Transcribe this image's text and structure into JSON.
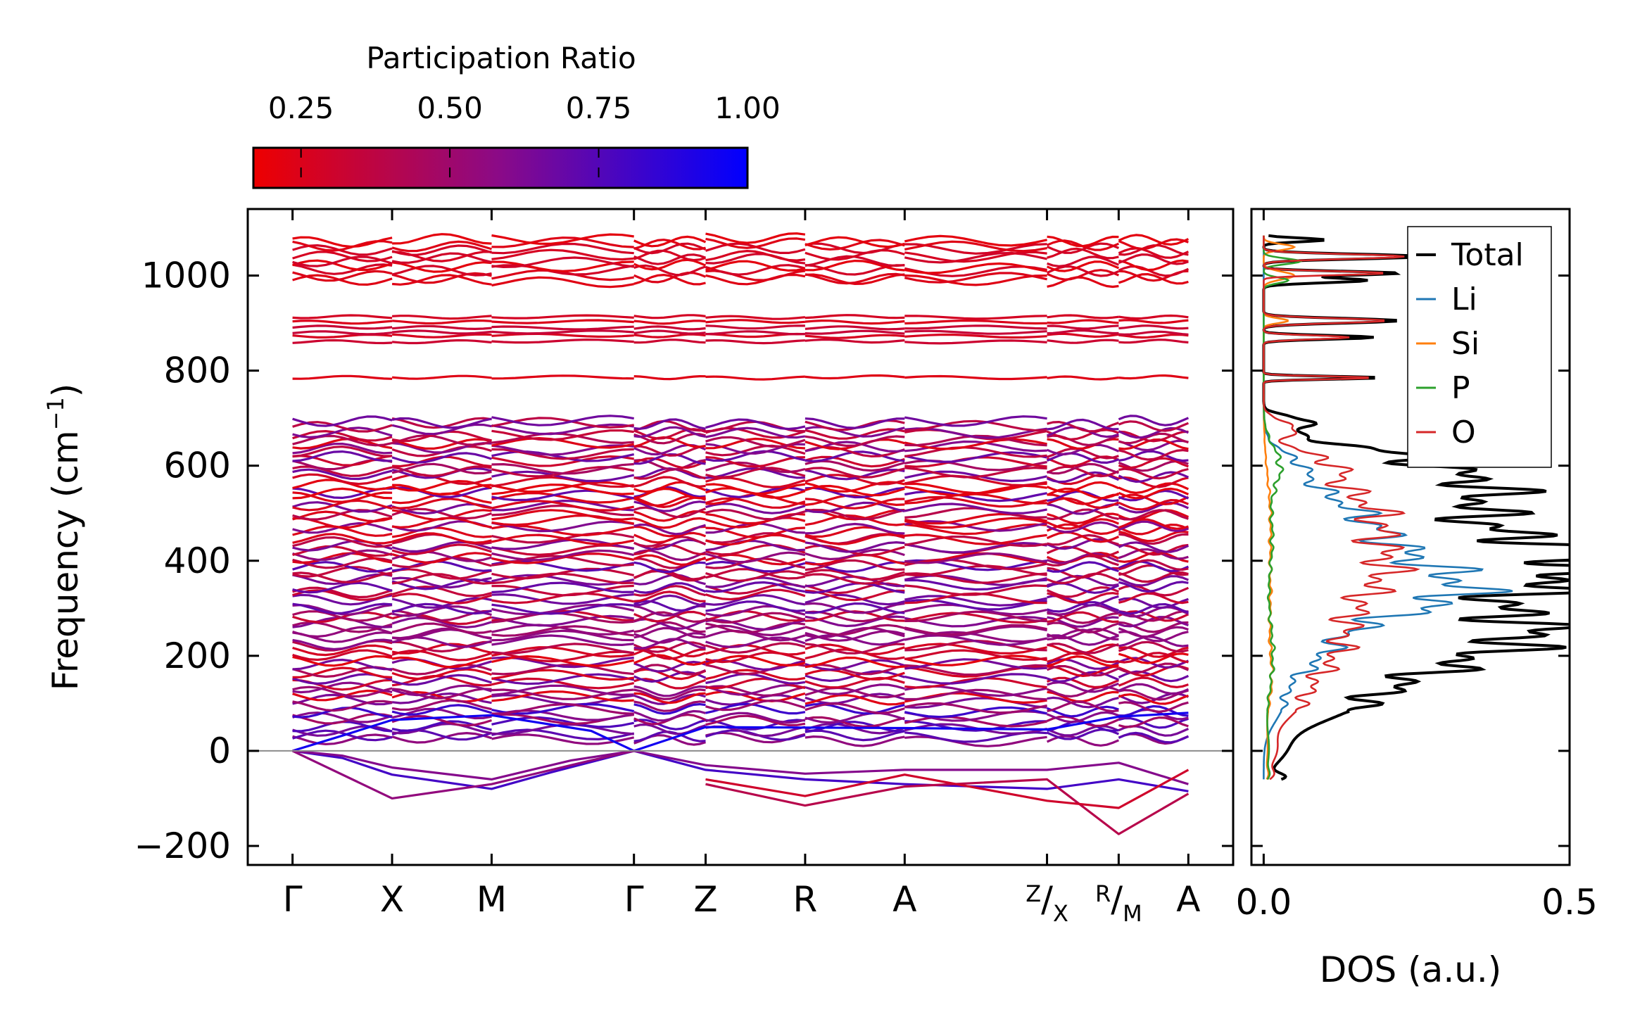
{
  "chart_data": [
    {
      "type": "line",
      "name": "phonon-band-structure",
      "ylabel": "Frequency (cm⁻¹)",
      "ylabel_text": "Frequency (cm",
      "ylabel_sup": "−1",
      "ylabel_close": ")",
      "ylim": [
        -240,
        1140
      ],
      "yticks": [
        -200,
        0,
        200,
        400,
        600,
        800,
        1000
      ],
      "ytick_labels": [
        "−200",
        "0",
        "200",
        "400",
        "600",
        "800",
        "1000"
      ],
      "kpath": [
        {
          "label": "Γ",
          "pos": 0.0
        },
        {
          "label": "X",
          "pos": 1.0
        },
        {
          "label": "M",
          "pos": 2.0
        },
        {
          "label": "Γ",
          "pos": 3.43
        },
        {
          "label": "Z",
          "pos": 4.15
        },
        {
          "label": "R",
          "pos": 5.15
        },
        {
          "label": "A",
          "pos": 6.15
        },
        {
          "label": "Z/X",
          "pos": 7.58,
          "num": "Z",
          "den": "X"
        },
        {
          "label": "R/M",
          "pos": 8.3,
          "num": "R",
          "den": "M"
        },
        {
          "label": "A",
          "pos": 9.0
        }
      ],
      "xlim": [
        -0.45,
        9.45
      ],
      "zero_line": 0,
      "colorbar": {
        "title": "Participation Ratio",
        "range": [
          0.17,
          1.0
        ],
        "ticks": [
          0.25,
          0.5,
          0.75,
          1.0
        ],
        "tick_labels": [
          "0.25",
          "0.50",
          "0.75",
          "1.00"
        ],
        "color_low": "#ee0000",
        "color_mid": "#8a0a88",
        "color_high": "#0000ff"
      },
      "band_groups": [
        {
          "range": [
            985,
            1085
          ],
          "count": 9,
          "pr": [
            0.2,
            0.3
          ]
        },
        {
          "range": [
            860,
            918
          ],
          "count": 6,
          "pr": [
            0.22,
            0.35
          ]
        },
        {
          "range": [
            780,
            790
          ],
          "count": 1,
          "pr": [
            0.2,
            0.25
          ]
        },
        {
          "range": [
            100,
            700
          ],
          "count": 62,
          "pr": [
            0.2,
            0.75
          ]
        },
        {
          "range": [
            20,
            100
          ],
          "count": 8,
          "pr": [
            0.45,
            0.85
          ]
        }
      ],
      "acoustic_branches": [
        {
          "pr": 0.95,
          "points": [
            [
              0,
              0
            ],
            [
              0.5,
              32
            ],
            [
              1.0,
              65
            ],
            [
              2.0,
              75
            ],
            [
              3.0,
              42
            ],
            [
              3.43,
              0
            ],
            [
              4.15,
              50
            ],
            [
              6.15,
              48
            ],
            [
              7.58,
              45
            ],
            [
              8.3,
              72
            ],
            [
              9.0,
              80
            ]
          ]
        },
        {
          "pr": 0.8,
          "points": [
            [
              0,
              0
            ],
            [
              0.5,
              -15
            ],
            [
              1.0,
              -50
            ],
            [
              2.0,
              -80
            ],
            [
              2.6,
              -45
            ],
            [
              3.43,
              0
            ],
            [
              4.15,
              -40
            ],
            [
              5.15,
              -60
            ],
            [
              6.15,
              -70
            ],
            [
              7.58,
              -80
            ],
            [
              8.3,
              -60
            ],
            [
              9.0,
              -85
            ]
          ]
        },
        {
          "pr": 0.6,
          "points": [
            [
              0,
              0
            ],
            [
              0.5,
              -10
            ],
            [
              1.0,
              -35
            ],
            [
              2.0,
              -60
            ],
            [
              2.8,
              -20
            ],
            [
              3.43,
              0
            ],
            [
              4.15,
              -30
            ],
            [
              5.15,
              -48
            ],
            [
              6.15,
              -40
            ],
            [
              7.58,
              -40
            ],
            [
              8.3,
              -25
            ],
            [
              9.0,
              -70
            ]
          ]
        }
      ],
      "imaginary_branches": [
        {
          "pr": 0.55,
          "points": [
            [
              0,
              0
            ],
            [
              1.0,
              -100
            ],
            [
              2.0,
              -70
            ],
            [
              3.0,
              -20
            ],
            [
              3.43,
              0
            ]
          ]
        },
        {
          "pr": 0.4,
          "points": [
            [
              4.15,
              -70
            ],
            [
              5.15,
              -115
            ],
            [
              6.15,
              -75
            ],
            [
              7.58,
              -60
            ],
            [
              8.3,
              -175
            ],
            [
              9.0,
              -90
            ]
          ]
        },
        {
          "pr": 0.3,
          "points": [
            [
              4.15,
              -60
            ],
            [
              5.15,
              -95
            ],
            [
              6.15,
              -50
            ],
            [
              7.58,
              -105
            ],
            [
              8.3,
              -120
            ],
            [
              9.0,
              -40
            ]
          ]
        }
      ]
    },
    {
      "type": "line",
      "name": "density-of-states",
      "xlabel": "DOS (a.u.)",
      "xlim": [
        -0.02,
        0.5
      ],
      "xticks": [
        0.0,
        0.5
      ],
      "xtick_labels": [
        "0.0",
        "0.5"
      ],
      "ylim": [
        -240,
        1140
      ],
      "legend_position": "top-right",
      "series": [
        {
          "name": "Total",
          "color": "#000000",
          "components": [
            [
              -55,
              0.03,
              8
            ],
            [
              0,
              0.03,
              30
            ],
            [
              90,
              0.1,
              40
            ],
            [
              190,
              0.26,
              55
            ],
            [
              270,
              0.33,
              45
            ],
            [
              360,
              0.4,
              35
            ],
            [
              420,
              0.38,
              30
            ],
            [
              490,
              0.3,
              40
            ],
            [
              565,
              0.3,
              35
            ],
            [
              625,
              0.15,
              25
            ],
            [
              690,
              0.08,
              12
            ],
            [
              785,
              0.19,
              3
            ],
            [
              870,
              0.18,
              4
            ],
            [
              905,
              0.22,
              5
            ],
            [
              990,
              0.17,
              5
            ],
            [
              1005,
              0.22,
              4
            ],
            [
              1040,
              0.26,
              5
            ],
            [
              1075,
              0.1,
              4
            ]
          ]
        },
        {
          "name": "Li",
          "color": "#1f77b4",
          "components": [
            [
              100,
              0.03,
              40
            ],
            [
              200,
              0.08,
              40
            ],
            [
              280,
              0.12,
              40
            ],
            [
              330,
              0.18,
              35
            ],
            [
              380,
              0.19,
              40
            ],
            [
              450,
              0.14,
              40
            ],
            [
              520,
              0.1,
              40
            ],
            [
              600,
              0.05,
              30
            ]
          ]
        },
        {
          "name": "Si",
          "color": "#ff7f0e",
          "components": [
            [
              -50,
              0.005,
              10
            ],
            [
              0,
              0.006,
              40
            ],
            [
              150,
              0.012,
              60
            ],
            [
              320,
              0.01,
              80
            ],
            [
              500,
              0.01,
              80
            ],
            [
              905,
              0.04,
              5
            ],
            [
              1000,
              0.05,
              8
            ],
            [
              1060,
              0.05,
              6
            ]
          ]
        },
        {
          "name": "P",
          "color": "#2ca02c",
          "components": [
            [
              -50,
              0.006,
              10
            ],
            [
              0,
              0.008,
              40
            ],
            [
              200,
              0.015,
              80
            ],
            [
              450,
              0.014,
              80
            ],
            [
              600,
              0.025,
              40
            ],
            [
              990,
              0.04,
              6
            ],
            [
              1030,
              0.06,
              6
            ]
          ]
        },
        {
          "name": "O",
          "color": "#d62728",
          "components": [
            [
              -50,
              0.012,
              10
            ],
            [
              0,
              0.02,
              30
            ],
            [
              100,
              0.05,
              40
            ],
            [
              200,
              0.1,
              50
            ],
            [
              300,
              0.12,
              50
            ],
            [
              380,
              0.14,
              40
            ],
            [
              450,
              0.13,
              40
            ],
            [
              520,
              0.14,
              40
            ],
            [
              600,
              0.1,
              30
            ],
            [
              680,
              0.05,
              15
            ],
            [
              785,
              0.18,
              3
            ],
            [
              870,
              0.14,
              4
            ],
            [
              905,
              0.2,
              5
            ],
            [
              1005,
              0.2,
              4
            ],
            [
              1040,
              0.23,
              5
            ]
          ]
        }
      ]
    }
  ]
}
